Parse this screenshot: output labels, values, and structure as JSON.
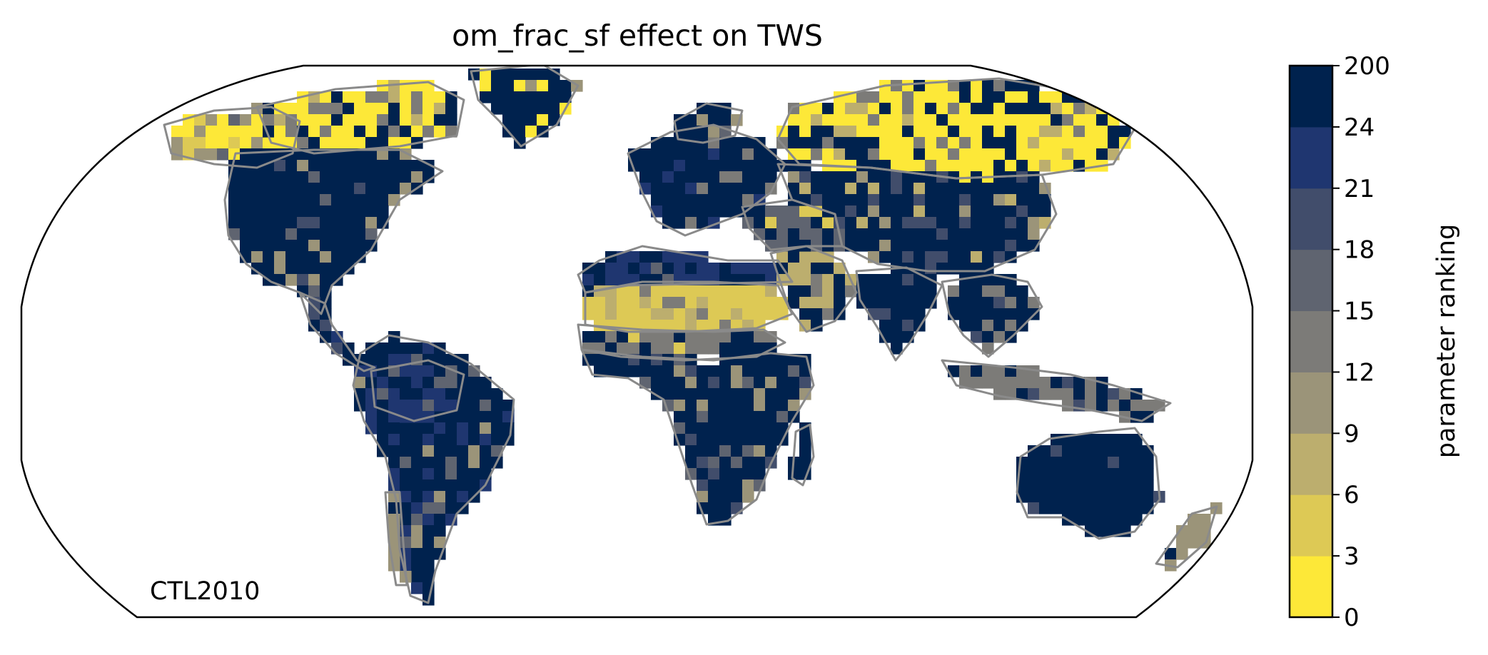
{
  "map": {
    "title": "om_frac_sf effect on TWS",
    "run_label": "CTL2010",
    "projection": "Robinson",
    "coastline_color": "#8a8a8a",
    "frame_color": "#000000",
    "cells": {
      "north_america": 9,
      "canada_arctic": 1,
      "alaska": 4,
      "central_america": 7,
      "south_america": 9,
      "amazon_basin": 8,
      "andes": 4,
      "europe": 9,
      "scandinavia": 9,
      "north_africa_mediterranean": 8,
      "sahara": 2,
      "sahel": 5,
      "central_africa": 9,
      "arabia": 3,
      "middle_east": 6,
      "siberia": 1,
      "central_asia": 9,
      "india": 9,
      "south_east_asia": 9,
      "indonesia": 5,
      "australia": 9,
      "new_zealand": 4,
      "greenland": 9,
      "madagascar": 9
    }
  },
  "colorbar": {
    "label": "parameter ranking",
    "tick_labels": [
      "0",
      "3",
      "6",
      "9",
      "12",
      "15",
      "18",
      "21",
      "24",
      "200"
    ],
    "bins": [
      {
        "from": 0,
        "to": 3,
        "color": "#fde838"
      },
      {
        "from": 3,
        "to": 6,
        "color": "#ddc955"
      },
      {
        "from": 6,
        "to": 9,
        "color": "#bcae6e"
      },
      {
        "from": 9,
        "to": 12,
        "color": "#9b9479"
      },
      {
        "from": 12,
        "to": 15,
        "color": "#7c7b78"
      },
      {
        "from": 15,
        "to": 18,
        "color": "#5f6470"
      },
      {
        "from": 18,
        "to": 21,
        "color": "#414d6b"
      },
      {
        "from": 21,
        "to": 24,
        "color": "#1f3670"
      },
      {
        "from": 24,
        "to": 200,
        "color": "#00224e"
      }
    ]
  }
}
